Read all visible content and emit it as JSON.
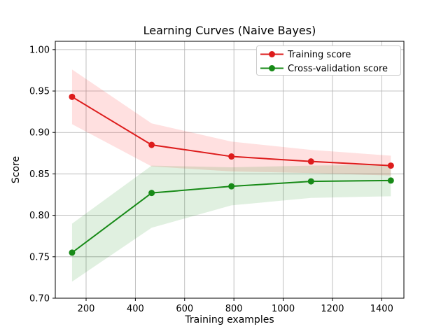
{
  "chart_data": {
    "type": "line",
    "title": "Learning Curves (Naive Bayes)",
    "xlabel": "Training examples",
    "ylabel": "Score",
    "x": [
      143,
      466,
      790,
      1113,
      1437
    ],
    "series": [
      {
        "name": "Training score",
        "color": "#dd1c1c",
        "band_fill": "rgba(255,0,0,0.12)",
        "values": [
          0.943,
          0.885,
          0.871,
          0.865,
          0.86
        ],
        "band_upper": [
          0.976,
          0.911,
          0.889,
          0.879,
          0.872
        ],
        "band_lower": [
          0.91,
          0.859,
          0.853,
          0.851,
          0.848
        ]
      },
      {
        "name": "Cross-validation score",
        "color": "#178a17",
        "band_fill": "rgba(0,128,0,0.12)",
        "values": [
          0.755,
          0.827,
          0.835,
          0.841,
          0.842
        ],
        "band_upper": [
          0.79,
          0.86,
          0.858,
          0.86,
          0.861
        ],
        "band_lower": [
          0.72,
          0.785,
          0.812,
          0.821,
          0.823
        ]
      }
    ],
    "xticks": [
      200,
      400,
      600,
      800,
      1000,
      1200,
      1400
    ],
    "xtick_labels": [
      "200",
      "400",
      "600",
      "800",
      "1000",
      "1200",
      "1400"
    ],
    "yticks": [
      0.7,
      0.75,
      0.8,
      0.85,
      0.9,
      0.95,
      1.0
    ],
    "ytick_labels": [
      "0.70",
      "0.75",
      "0.80",
      "0.85",
      "0.90",
      "0.95",
      "1.00"
    ],
    "xlim": [
      75,
      1490
    ],
    "ylim": [
      0.7,
      1.01
    ],
    "grid": true,
    "grid_color": "#b0b0b0",
    "axis_color": "#000000",
    "background_color": "#ffffff",
    "legend_position": "upper right",
    "legend": [
      "Training score",
      "Cross-validation score"
    ]
  }
}
